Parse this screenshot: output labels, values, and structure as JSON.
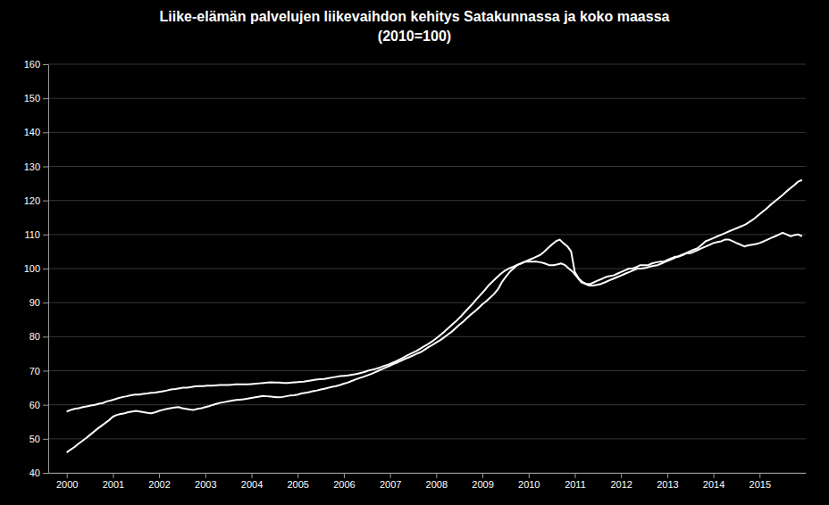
{
  "chart_data": {
    "type": "line",
    "title": "Liike-elämän palvelujen liikevaihdon kehitys Satakunnassa ja koko maassa\n(2010=100)",
    "xlim": [
      1999.6,
      2016.0
    ],
    "xticks": [
      2000,
      2001,
      2002,
      2003,
      2004,
      2005,
      2006,
      2007,
      2008,
      2009,
      2010,
      2011,
      2012,
      2013,
      2014,
      2015
    ],
    "ylim": [
      40,
      160
    ],
    "yticks": [
      40,
      50,
      60,
      70,
      80,
      90,
      100,
      110,
      120,
      130,
      140,
      150,
      160
    ],
    "grid": true,
    "series": [
      {
        "color": "#ffffff",
        "x": [
          2000,
          2000.08,
          2000.17,
          2000.25,
          2000.33,
          2000.42,
          2000.5,
          2000.58,
          2000.67,
          2000.75,
          2000.83,
          2000.92,
          2001,
          2001.08,
          2001.17,
          2001.25,
          2001.33,
          2001.42,
          2001.5,
          2001.58,
          2001.67,
          2001.75,
          2001.83,
          2001.92,
          2002,
          2002.08,
          2002.17,
          2002.25,
          2002.33,
          2002.42,
          2002.5,
          2002.58,
          2002.67,
          2002.75,
          2002.83,
          2002.92,
          2003,
          2003.08,
          2003.17,
          2003.25,
          2003.33,
          2003.42,
          2003.5,
          2003.58,
          2003.67,
          2003.75,
          2003.83,
          2003.92,
          2004,
          2004.08,
          2004.17,
          2004.25,
          2004.33,
          2004.42,
          2004.5,
          2004.58,
          2004.67,
          2004.75,
          2004.83,
          2004.92,
          2005,
          2005.08,
          2005.17,
          2005.25,
          2005.33,
          2005.42,
          2005.5,
          2005.58,
          2005.67,
          2005.75,
          2005.83,
          2005.92,
          2006,
          2006.08,
          2006.17,
          2006.25,
          2006.33,
          2006.42,
          2006.5,
          2006.58,
          2006.67,
          2006.75,
          2006.83,
          2006.92,
          2007,
          2007.08,
          2007.17,
          2007.25,
          2007.33,
          2007.42,
          2007.5,
          2007.58,
          2007.67,
          2007.75,
          2007.83,
          2007.92,
          2008,
          2008.09,
          2008.17,
          2008.25,
          2008.34,
          2008.42,
          2008.5,
          2008.59,
          2008.67,
          2008.75,
          2008.84,
          2008.92,
          2009,
          2009.09,
          2009.17,
          2009.25,
          2009.34,
          2009.42,
          2009.5,
          2009.59,
          2009.67,
          2009.75,
          2009.84,
          2009.92,
          2010,
          2010.09,
          2010.17,
          2010.25,
          2010.34,
          2010.42,
          2010.5,
          2010.59,
          2010.67,
          2010.75,
          2010.84,
          2010.92,
          2011,
          2011.09,
          2011.17,
          2011.25,
          2011.34,
          2011.42,
          2011.5,
          2011.59,
          2011.67,
          2011.75,
          2011.84,
          2011.92,
          2012,
          2012.09,
          2012.17,
          2012.25,
          2012.34,
          2012.42,
          2012.5,
          2012.59,
          2012.67,
          2012.75,
          2012.84,
          2012.92,
          2013,
          2013.09,
          2013.17,
          2013.25,
          2013.34,
          2013.42,
          2013.5,
          2013.59,
          2013.67,
          2013.75,
          2013.84,
          2013.92,
          2014,
          2014.09,
          2014.17,
          2014.25,
          2014.34,
          2014.42,
          2014.5,
          2014.59,
          2014.67,
          2014.75,
          2014.84,
          2014.92,
          2015,
          2015.09,
          2015.17,
          2015.25,
          2015.34,
          2015.42,
          2015.5,
          2015.59,
          2015.67,
          2015.75,
          2015.84,
          2015.92
        ],
        "values": [
          46.0,
          46.8,
          47.6,
          48.5,
          49.3,
          50.2,
          51.1,
          52.0,
          53.0,
          53.8,
          54.6,
          55.5,
          56.5,
          57.0,
          57.3,
          57.5,
          57.8,
          58.0,
          58.2,
          58.0,
          57.8,
          57.6,
          57.5,
          57.8,
          58.2,
          58.5,
          58.8,
          59.0,
          59.2,
          59.3,
          59.0,
          58.8,
          58.6,
          58.5,
          58.8,
          59.0,
          59.3,
          59.6,
          60.0,
          60.3,
          60.6,
          60.8,
          61.0,
          61.2,
          61.4,
          61.5,
          61.6,
          61.8,
          62.0,
          62.2,
          62.4,
          62.6,
          62.5,
          62.4,
          62.3,
          62.2,
          62.3,
          62.5,
          62.7,
          62.8,
          63.0,
          63.3,
          63.5,
          63.7,
          64.0,
          64.2,
          64.5,
          64.7,
          65.0,
          65.3,
          65.5,
          65.8,
          66.2,
          66.5,
          67.0,
          67.4,
          67.8,
          68.2,
          68.6,
          69.0,
          69.5,
          70.0,
          70.5,
          71.0,
          71.5,
          72.0,
          72.5,
          73.0,
          73.5,
          74.0,
          74.5,
          75.0,
          75.5,
          76.2,
          76.9,
          77.6,
          78.3,
          79.0,
          79.8,
          80.6,
          81.5,
          82.5,
          83.5,
          84.5,
          85.5,
          86.5,
          87.5,
          88.5,
          89.5,
          90.5,
          91.5,
          92.5,
          94.0,
          96.0,
          97.5,
          99.0,
          100.0,
          101.0,
          101.5,
          102.0,
          102.5,
          103.0,
          103.5,
          104.0,
          105.0,
          106.0,
          107.0,
          108.0,
          108.5,
          107.5,
          106.5,
          105.0,
          99.0,
          97.0,
          96.0,
          95.5,
          95.5,
          96.0,
          96.5,
          97.0,
          97.5,
          97.8,
          98.0,
          98.5,
          99.0,
          99.5,
          100.0,
          100.0,
          100.5,
          101.0,
          101.0,
          101.0,
          101.5,
          101.8,
          102.0,
          102.0,
          102.5,
          103.0,
          103.5,
          103.5,
          104.0,
          104.5,
          104.5,
          105.0,
          105.5,
          106.0,
          106.5,
          107.0,
          107.5,
          107.8,
          108.0,
          108.5,
          108.5,
          108.0,
          107.5,
          107.0,
          106.5,
          106.8,
          107.0,
          107.2,
          107.5,
          108.0,
          108.5,
          109.0,
          109.5,
          110.0,
          110.5,
          110.0,
          109.5,
          109.8,
          110.0,
          109.5
        ]
      },
      {
        "color": "#ffffff",
        "x": [
          2000,
          2000.09,
          2000.17,
          2000.26,
          2000.35,
          2000.43,
          2000.52,
          2000.61,
          2000.7,
          2000.78,
          2000.87,
          2000.96,
          2001.04,
          2001.13,
          2001.22,
          2001.3,
          2001.39,
          2001.48,
          2001.57,
          2001.65,
          2001.74,
          2001.83,
          2001.91,
          2002,
          2002.09,
          2002.17,
          2002.26,
          2002.35,
          2002.44,
          2002.52,
          2002.61,
          2002.7,
          2002.78,
          2002.87,
          2002.96,
          2003.04,
          2003.13,
          2003.22,
          2003.31,
          2003.39,
          2003.48,
          2003.57,
          2003.65,
          2003.74,
          2003.83,
          2003.91,
          2004,
          2004.09,
          2004.18,
          2004.26,
          2004.35,
          2004.44,
          2004.52,
          2004.61,
          2004.7,
          2004.78,
          2004.87,
          2004.96,
          2005.05,
          2005.13,
          2005.22,
          2005.31,
          2005.39,
          2005.48,
          2005.57,
          2005.65,
          2005.74,
          2005.83,
          2005.92,
          2006,
          2006.09,
          2006.18,
          2006.26,
          2006.35,
          2006.44,
          2006.52,
          2006.61,
          2006.7,
          2006.79,
          2006.87,
          2006.96,
          2007.05,
          2007.13,
          2007.22,
          2007.31,
          2007.39,
          2007.48,
          2007.57,
          2007.66,
          2007.74,
          2007.83,
          2007.92,
          2008,
          2008.09,
          2008.18,
          2008.26,
          2008.35,
          2008.44,
          2008.53,
          2008.61,
          2008.7,
          2008.79,
          2008.87,
          2008.96,
          2009.05,
          2009.13,
          2009.22,
          2009.31,
          2009.4,
          2009.48,
          2009.57,
          2009.66,
          2009.74,
          2009.83,
          2009.92,
          2010,
          2010.09,
          2010.18,
          2010.27,
          2010.35,
          2010.44,
          2010.53,
          2010.61,
          2010.7,
          2010.79,
          2010.87,
          2010.96,
          2011.05,
          2011.14,
          2011.22,
          2011.31,
          2011.4,
          2011.48,
          2011.57,
          2011.66,
          2011.74,
          2011.83,
          2011.92,
          2012.01,
          2012.09,
          2012.18,
          2012.27,
          2012.35,
          2012.44,
          2012.53,
          2012.61,
          2012.7,
          2012.79,
          2012.88,
          2012.96,
          2013.05,
          2013.14,
          2013.22,
          2013.31,
          2013.4,
          2013.48,
          2013.57,
          2013.66,
          2013.75,
          2013.83,
          2013.92,
          2014.01,
          2014.09,
          2014.18,
          2014.27,
          2014.35,
          2014.44,
          2014.53,
          2014.62,
          2014.7,
          2014.79,
          2014.88,
          2014.96,
          2015.05,
          2015.14,
          2015.22,
          2015.31,
          2015.4,
          2015.49,
          2015.57,
          2015.66,
          2015.75,
          2015.83,
          2015.92
        ],
        "values": [
          58.0,
          58.5,
          58.8,
          59.0,
          59.3,
          59.5,
          59.8,
          60.0,
          60.3,
          60.5,
          61.0,
          61.3,
          61.6,
          62.0,
          62.3,
          62.5,
          62.8,
          63.0,
          63.0,
          63.2,
          63.3,
          63.5,
          63.6,
          63.8,
          64.0,
          64.2,
          64.5,
          64.6,
          64.8,
          65.0,
          65.0,
          65.2,
          65.4,
          65.5,
          65.5,
          65.6,
          65.6,
          65.7,
          65.8,
          65.8,
          65.8,
          65.9,
          66.0,
          66.0,
          66.0,
          66.0,
          66.1,
          66.2,
          66.3,
          66.4,
          66.5,
          66.6,
          66.5,
          66.5,
          66.4,
          66.4,
          66.5,
          66.6,
          66.7,
          66.8,
          67.0,
          67.2,
          67.4,
          67.5,
          67.6,
          67.8,
          68.0,
          68.2,
          68.4,
          68.5,
          68.6,
          68.8,
          69.0,
          69.3,
          69.6,
          70.0,
          70.3,
          70.6,
          71.0,
          71.4,
          71.8,
          72.3,
          72.8,
          73.4,
          74.0,
          74.6,
          75.2,
          75.8,
          76.5,
          77.2,
          77.9,
          78.7,
          79.5,
          80.5,
          81.5,
          82.5,
          83.6,
          84.7,
          85.9,
          87.1,
          88.4,
          89.7,
          91.0,
          92.3,
          93.7,
          95.0,
          96.2,
          97.4,
          98.5,
          99.3,
          100.0,
          100.5,
          101.0,
          101.5,
          102.0,
          102.0,
          102.0,
          102.0,
          101.8,
          101.5,
          101.0,
          101.0,
          101.2,
          101.5,
          101.0,
          100.0,
          99.0,
          97.5,
          96.0,
          95.5,
          95.0,
          95.0,
          95.2,
          95.5,
          96.0,
          96.5,
          97.0,
          97.5,
          98.0,
          98.5,
          99.0,
          99.5,
          100.0,
          100.0,
          100.2,
          100.5,
          100.8,
          101.0,
          101.5,
          102.0,
          102.5,
          103.0,
          103.5,
          104.0,
          104.5,
          105.0,
          105.5,
          106.0,
          107.0,
          108.0,
          108.5,
          109.0,
          109.5,
          110.0,
          110.5,
          111.0,
          111.5,
          112.0,
          112.5,
          113.0,
          113.8,
          114.6,
          115.5,
          116.5,
          117.5,
          118.5,
          119.5,
          120.5,
          121.5,
          122.5,
          123.5,
          124.5,
          125.5,
          126.0
        ]
      }
    ]
  }
}
